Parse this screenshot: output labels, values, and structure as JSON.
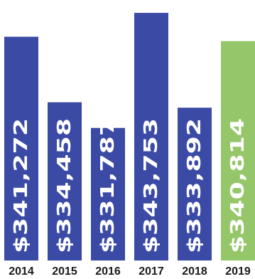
{
  "chart_data": {
    "type": "bar",
    "categories": [
      "2014",
      "2015",
      "2016",
      "2017",
      "2018",
      "2019"
    ],
    "values": [
      341272,
      334458,
      331787,
      343753,
      333892,
      340814
    ],
    "data_labels": [
      "$341,272",
      "$334,458",
      "$331,787",
      "$343,753",
      "$333,892",
      "$340,814"
    ],
    "colors": [
      "#3a4aa5",
      "#3a4aa5",
      "#3a4aa5",
      "#3a4aa5",
      "#3a4aa5",
      "#95c76a"
    ],
    "title": "",
    "xlabel": "",
    "ylabel": "",
    "ylim": [
      318000,
      344500
    ],
    "grid": false,
    "legend": "none"
  }
}
